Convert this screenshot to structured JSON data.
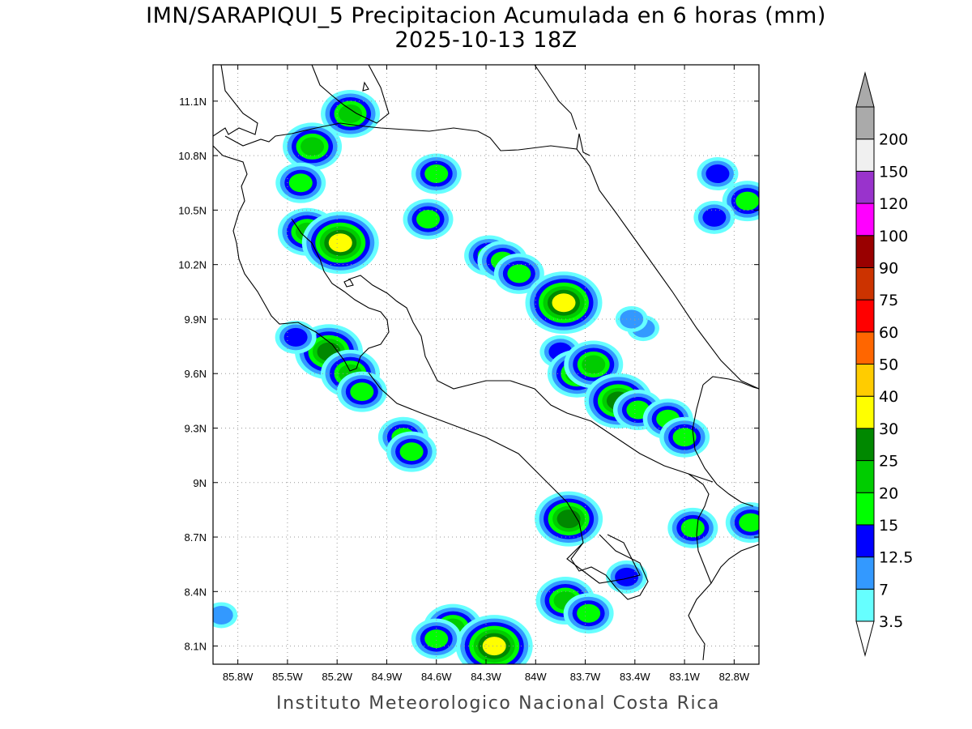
{
  "title": {
    "line1": "IMN/SARAPIQUI_5 Precipitacion Acumulada en 6 horas (mm)",
    "line2": "2025-10-13 18Z"
  },
  "footer": "Instituto Meteorologico Nacional Costa Rica",
  "map": {
    "region": "Costa Rica",
    "variable": "6-hour accumulated precipitation (mm)",
    "lon_range": [
      -85.95,
      -82.65
    ],
    "lat_range": [
      8.0,
      11.3
    ],
    "x_ticks": [
      "85.8W",
      "85.5W",
      "85.2W",
      "84.9W",
      "84.6W",
      "84.3W",
      "84W",
      "83.7W",
      "83.4W",
      "83.1W",
      "82.8W"
    ],
    "y_ticks": [
      "11.1N",
      "10.8N",
      "10.5N",
      "10.2N",
      "9.9N",
      "9.6N",
      "9.3N",
      "9N",
      "8.7N",
      "8.4N",
      "8.1N"
    ],
    "grid": "dotted"
  },
  "colorbar": {
    "labels": [
      "3.5",
      "7",
      "12.5",
      "15",
      "20",
      "25",
      "30",
      "40",
      "50",
      "60",
      "75",
      "90",
      "100",
      "120",
      "150",
      "200"
    ],
    "colors": [
      "#66ffff",
      "#3399ff",
      "#0000ff",
      "#00ff00",
      "#00cc00",
      "#008800",
      "#ffff00",
      "#ffcc00",
      "#ff6600",
      "#ff0000",
      "#cc3300",
      "#990000",
      "#ff00ff",
      "#9933cc",
      "#f0f0f0",
      "#aaaaaa"
    ]
  },
  "rain_cells": [
    {
      "lon": -85.35,
      "lat": 10.85,
      "level": 5
    },
    {
      "lon": -85.42,
      "lat": 10.65,
      "level": 4
    },
    {
      "lon": -85.12,
      "lat": 11.03,
      "level": 5
    },
    {
      "lon": -85.38,
      "lat": 10.38,
      "level": 5
    },
    {
      "lon": -85.18,
      "lat": 10.32,
      "level": 7
    },
    {
      "lon": -85.25,
      "lat": 9.72,
      "level": 6
    },
    {
      "lon": -85.12,
      "lat": 9.6,
      "level": 5
    },
    {
      "lon": -85.05,
      "lat": 9.5,
      "level": 4
    },
    {
      "lon": -85.45,
      "lat": 9.8,
      "level": 3
    },
    {
      "lon": -84.8,
      "lat": 9.25,
      "level": 4
    },
    {
      "lon": -84.75,
      "lat": 9.17,
      "level": 4
    },
    {
      "lon": -84.6,
      "lat": 10.7,
      "level": 4
    },
    {
      "lon": -84.65,
      "lat": 10.45,
      "level": 4
    },
    {
      "lon": -84.28,
      "lat": 10.25,
      "level": 4
    },
    {
      "lon": -84.2,
      "lat": 10.22,
      "level": 4
    },
    {
      "lon": -84.1,
      "lat": 10.15,
      "level": 4
    },
    {
      "lon": -83.83,
      "lat": 9.99,
      "level": 7
    },
    {
      "lon": -83.85,
      "lat": 9.72,
      "level": 3
    },
    {
      "lon": -83.75,
      "lat": 9.6,
      "level": 5
    },
    {
      "lon": -83.65,
      "lat": 9.65,
      "level": 5
    },
    {
      "lon": -83.5,
      "lat": 9.45,
      "level": 6
    },
    {
      "lon": -83.38,
      "lat": 9.4,
      "level": 4
    },
    {
      "lon": -83.2,
      "lat": 9.35,
      "level": 4
    },
    {
      "lon": -83.1,
      "lat": 9.25,
      "level": 4
    },
    {
      "lon": -83.8,
      "lat": 8.8,
      "level": 6
    },
    {
      "lon": -83.82,
      "lat": 8.35,
      "level": 5
    },
    {
      "lon": -83.68,
      "lat": 8.28,
      "level": 4
    },
    {
      "lon": -84.5,
      "lat": 8.2,
      "level": 5
    },
    {
      "lon": -84.25,
      "lat": 8.1,
      "level": 7
    },
    {
      "lon": -84.6,
      "lat": 8.14,
      "level": 4
    },
    {
      "lon": -82.72,
      "lat": 10.55,
      "level": 4
    },
    {
      "lon": -82.92,
      "lat": 10.46,
      "level": 3
    },
    {
      "lon": -82.9,
      "lat": 10.7,
      "level": 3
    },
    {
      "lon": -82.7,
      "lat": 8.78,
      "level": 4
    },
    {
      "lon": -83.05,
      "lat": 8.75,
      "level": 4
    },
    {
      "lon": -83.45,
      "lat": 8.48,
      "level": 3
    },
    {
      "lon": -85.9,
      "lat": 8.27,
      "level": 2
    },
    {
      "lon": -83.35,
      "lat": 9.85,
      "level": 2
    },
    {
      "lon": -83.42,
      "lat": 9.9,
      "level": 2
    }
  ]
}
